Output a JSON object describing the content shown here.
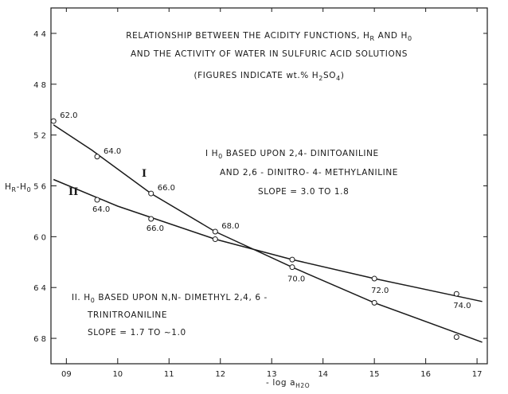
{
  "chart_data": {
    "type": "line",
    "title": "RELATIONSHIP BETWEEN THE ACIDITY FUNCTIONS, HR AND H0, AND THE ACTIVITY OF WATER IN SULFURIC ACID SOLUTIONS",
    "title_lines": [
      "RELATIONSHIP  BETWEEN  THE  ACIDITY  FUNCTIONS,  H",
      "AND  THE  ACTIVITY  OF  WATER  IN  SULFURIC  ACID  SOLUTIONS",
      "(FIGURES  INDICATE  wt.%  H"
    ],
    "title_sub_R": "R",
    "title_and_H": "AND  H",
    "title_sub_0": "0",
    "title_sub_2": "2",
    "title_tail": "SO",
    "title_sub_4": "4",
    "title_close": ")",
    "xlabel": "- log  a",
    "xlabel_sub": "H2O",
    "ylabel": "HR-H0",
    "xlim": [
      0.87,
      1.72
    ],
    "ylim": [
      4.2,
      7.0
    ],
    "y_inverted": true,
    "xticks": [
      0.9,
      1.0,
      1.1,
      1.2,
      1.3,
      1.4,
      1.5,
      1.6,
      1.7
    ],
    "xtick_labels": [
      "09",
      "10",
      "11",
      "12",
      "13",
      "14",
      "15",
      "16",
      "17"
    ],
    "yticks": [
      4.4,
      4.8,
      5.2,
      5.6,
      6.0,
      6.4,
      6.8
    ],
    "ytick_labels": [
      "4 4",
      "4 8",
      "5 2",
      "5 6",
      "6 0",
      "6 4",
      "6 8"
    ],
    "grid": false,
    "series": [
      {
        "name": "I",
        "points": [
          {
            "x": 0.875,
            "y": 5.09,
            "label": "62.0"
          },
          {
            "x": 0.96,
            "y": 5.37,
            "label": "64.0"
          },
          {
            "x": 1.065,
            "y": 5.66,
            "label": "66.0"
          },
          {
            "x": 1.19,
            "y": 5.96,
            "label": "68.0"
          },
          {
            "x": 1.34,
            "y": 6.24,
            "label": "70.0"
          },
          {
            "x": 1.5,
            "y": 6.52,
            "label": ""
          },
          {
            "x": 1.66,
            "y": 6.79,
            "label": ""
          }
        ],
        "line": [
          [
            0.875,
            5.12
          ],
          [
            0.95,
            5.32
          ],
          [
            1.065,
            5.66
          ],
          [
            1.19,
            5.96
          ],
          [
            1.34,
            6.24
          ],
          [
            1.5,
            6.52
          ],
          [
            1.71,
            6.83
          ]
        ]
      },
      {
        "name": "II",
        "points": [
          {
            "x": 0.96,
            "y": 5.71,
            "label": "64.0"
          },
          {
            "x": 1.065,
            "y": 5.86,
            "label": "66.0"
          },
          {
            "x": 1.19,
            "y": 6.02,
            "label": ""
          },
          {
            "x": 1.34,
            "y": 6.18,
            "label": ""
          },
          {
            "x": 1.5,
            "y": 6.33,
            "label": "72.0"
          },
          {
            "x": 1.66,
            "y": 6.45,
            "label": "74.0"
          }
        ],
        "line": [
          [
            0.875,
            5.55
          ],
          [
            1.0,
            5.76
          ],
          [
            1.19,
            6.02
          ],
          [
            1.34,
            6.18
          ],
          [
            1.5,
            6.33
          ],
          [
            1.71,
            6.51
          ]
        ]
      }
    ],
    "annotations": {
      "curve_I_label": "I",
      "curve_II_label": "II",
      "note_I_line1_pre": "I   H",
      "note_I_line1_sub": "0",
      "note_I_line1_post": "  BASED  UPON  2,4- DINITOANILINE",
      "note_I_line2": "AND  2,6 - DINITRO- 4- METHYLANILINE",
      "note_I_line3": "SLOPE  =  3.0  TO  1.8",
      "note_II_line1_pre": "II.  H",
      "note_II_line1_sub": "0",
      "note_II_line1_post": " BASED  UPON  N,N- DIMETHYL  2,4, 6 -",
      "note_II_line2": "TRINITROANILINE",
      "note_II_line3": "SLOPE  =  1.7  TO  ~1.0"
    }
  }
}
